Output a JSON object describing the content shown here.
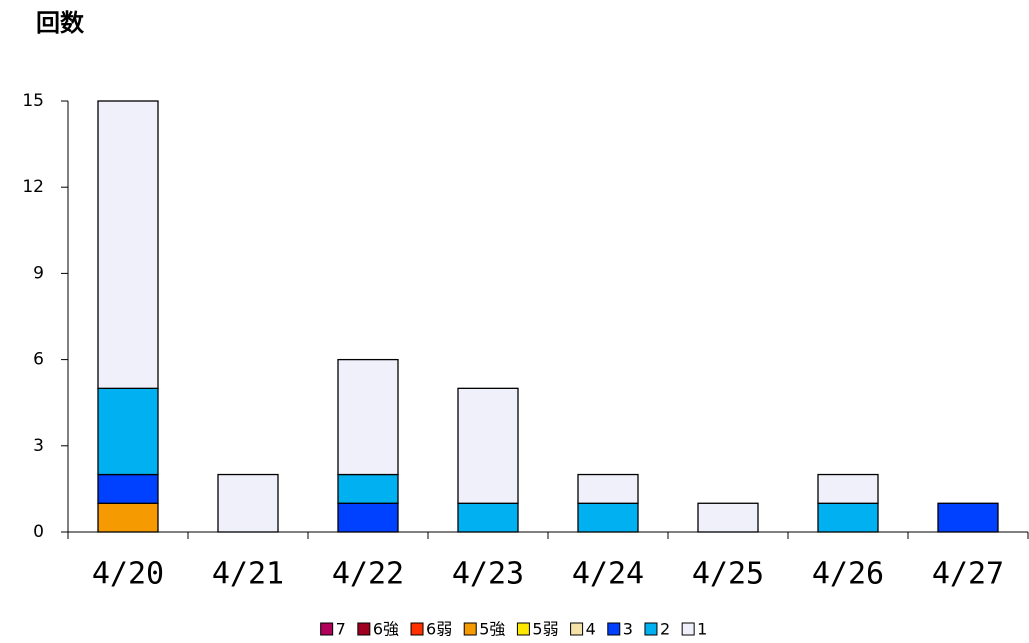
{
  "chart_data": {
    "type": "bar",
    "stacked": true,
    "title": "回数",
    "categories": [
      "4/20",
      "4/21",
      "4/22",
      "4/23",
      "4/24",
      "4/25",
      "4/26",
      "4/27"
    ],
    "series": [
      {
        "name": "7",
        "color": "#b0005a",
        "values": [
          0,
          0,
          0,
          0,
          0,
          0,
          0,
          0
        ]
      },
      {
        "name": "6強",
        "color": "#a00020",
        "values": [
          0,
          0,
          0,
          0,
          0,
          0,
          0,
          0
        ]
      },
      {
        "name": "6弱",
        "color": "#ff3000",
        "values": [
          0,
          0,
          0,
          0,
          0,
          0,
          0,
          0
        ]
      },
      {
        "name": "5強",
        "color": "#f59a00",
        "values": [
          1,
          0,
          0,
          0,
          0,
          0,
          0,
          0
        ]
      },
      {
        "name": "5弱",
        "color": "#ffe800",
        "values": [
          0,
          0,
          0,
          0,
          0,
          0,
          0,
          0
        ]
      },
      {
        "name": "4",
        "color": "#f5e2a8",
        "values": [
          0,
          0,
          0,
          0,
          0,
          0,
          0,
          0
        ]
      },
      {
        "name": "3",
        "color": "#0040ff",
        "values": [
          1,
          0,
          1,
          0,
          0,
          0,
          0,
          1
        ]
      },
      {
        "name": "2",
        "color": "#00b0f0",
        "values": [
          3,
          0,
          1,
          1,
          1,
          0,
          1,
          0
        ]
      },
      {
        "name": "1",
        "color": "#f0f0fa",
        "values": [
          10,
          2,
          4,
          4,
          1,
          1,
          1,
          0
        ]
      }
    ],
    "ylim": [
      0,
      15
    ],
    "yticks": [
      0,
      3,
      6,
      9,
      12,
      15
    ],
    "legend": "bottom"
  }
}
